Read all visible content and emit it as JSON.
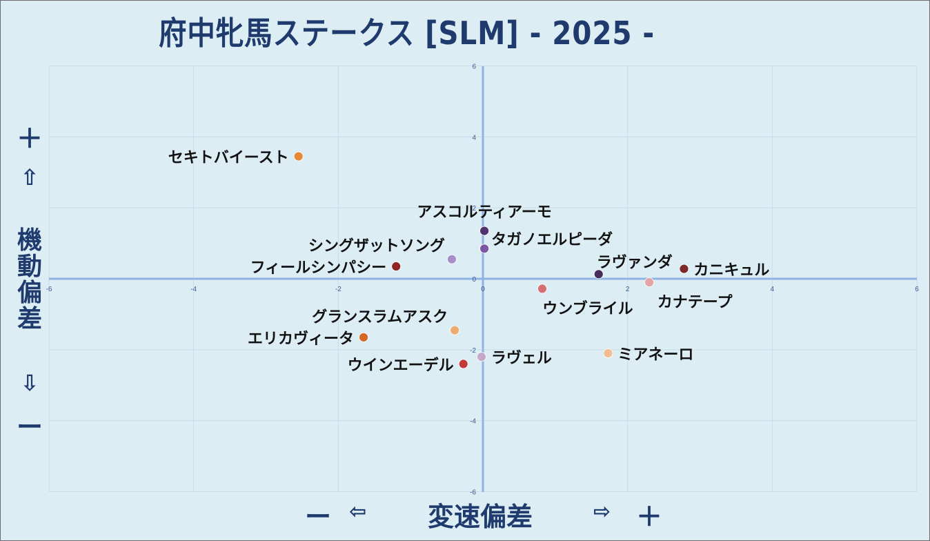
{
  "title": "府中牝馬ステークス [SLM]  - 2025 -",
  "y_axis": {
    "plus": "＋",
    "up_arrow": "⇧",
    "label": "機動偏差",
    "down_arrow": "⇩",
    "minus": "ー"
  },
  "x_axis": {
    "minus": "ー",
    "left_arrow": "⇦",
    "label": "変速偏差",
    "right_arrow": "⇨",
    "plus": "＋"
  },
  "colors": {
    "background": "#dcedf4",
    "axis_line": "#8fb4e3",
    "grid": "#c8dce8",
    "title": "#1f3b6e"
  },
  "chart_data": {
    "type": "scatter",
    "title": "府中牝馬ステークス [SLM]  - 2025 -",
    "xlabel": "変速偏差",
    "ylabel": "機動偏差",
    "xlim": [
      -6,
      6
    ],
    "ylim": [
      -6,
      6
    ],
    "x_ticks": [
      "-6",
      "-4",
      "-2",
      "0",
      "2",
      "4",
      "6"
    ],
    "y_ticks": [
      "6",
      "4",
      "2",
      "0",
      "-2",
      "-4",
      "-6"
    ],
    "grid": true,
    "points": [
      {
        "label": "セキトバイースト",
        "x": -2.55,
        "y": 3.45,
        "color": "#e8832a",
        "label_pos": "left"
      },
      {
        "label": "アスコルティアーモ",
        "x": 0.02,
        "y": 1.35,
        "color": "#4b2a6b",
        "label_pos": "above"
      },
      {
        "label": "タガノエルピーダ",
        "x": 0.02,
        "y": 0.85,
        "color": "#7b4fa3",
        "label_pos": "right-up"
      },
      {
        "label": "シングザットソング",
        "x": -0.43,
        "y": 0.55,
        "color": "#a48bc4",
        "label_pos": "left-up"
      },
      {
        "label": "フィールシンパシー",
        "x": -1.2,
        "y": 0.35,
        "color": "#8b1a1a",
        "label_pos": "left"
      },
      {
        "label": "ラヴァンダ",
        "x": 1.6,
        "y": 0.13,
        "color": "#3d2454",
        "label_pos": "above-right"
      },
      {
        "label": "カニキュル",
        "x": 2.78,
        "y": 0.28,
        "color": "#7a1f1f",
        "label_pos": "right"
      },
      {
        "label": "カナテープ",
        "x": 2.3,
        "y": -0.1,
        "color": "#e5a0a0",
        "label_pos": "below"
      },
      {
        "label": "ウンブライル",
        "x": 0.82,
        "y": -0.28,
        "color": "#d46a6a",
        "label_pos": "below"
      },
      {
        "label": "グランスラムアスク",
        "x": -0.39,
        "y": -1.45,
        "color": "#f0a868",
        "label_pos": "left-up"
      },
      {
        "label": "エリカヴィータ",
        "x": -1.65,
        "y": -1.65,
        "color": "#d4601a",
        "label_pos": "left"
      },
      {
        "label": "ミアネーロ",
        "x": 1.73,
        "y": -2.1,
        "color": "#f5b98a",
        "label_pos": "right"
      },
      {
        "label": "ラヴェル",
        "x": -0.02,
        "y": -2.2,
        "color": "#c4a8c8",
        "label_pos": "right"
      },
      {
        "label": "ウインエーデル",
        "x": -0.27,
        "y": -2.4,
        "color": "#c0302f",
        "label_pos": "left"
      }
    ]
  }
}
